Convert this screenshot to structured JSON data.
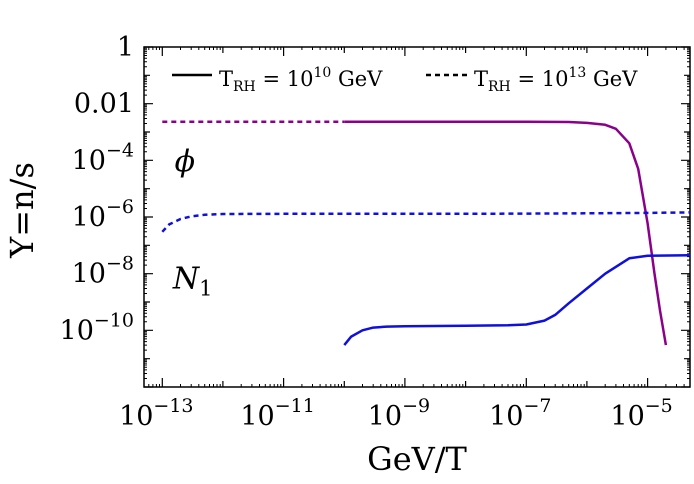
{
  "chart_data": {
    "type": "line",
    "title": "",
    "xlabel": "GeV/T",
    "ylabel": "Y=n/s",
    "xscale": "log",
    "yscale": "log",
    "xlim": [
      5e-14,
      5e-05
    ],
    "ylim": [
      1e-12,
      1
    ],
    "grid": false,
    "legend_position": "top",
    "legend": [
      {
        "style": "solid",
        "text_prefix": "T",
        "text_sub": "RH",
        "text_mid": " = 10",
        "text_sup": "10",
        "text_suffix": " GeV"
      },
      {
        "style": "dashed",
        "text_prefix": "T",
        "text_sub": "RH",
        "text_mid": " = 10",
        "text_sup": "13",
        "text_suffix": " GeV"
      }
    ],
    "x_ticks": [
      {
        "value": 1e-13,
        "base": "10",
        "exp": "−13"
      },
      {
        "value": 1e-11,
        "base": "10",
        "exp": "−11"
      },
      {
        "value": 1e-09,
        "base": "10",
        "exp": "−9"
      },
      {
        "value": 1e-07,
        "base": "10",
        "exp": "−7"
      },
      {
        "value": 1e-05,
        "base": "10",
        "exp": "−5"
      }
    ],
    "y_ticks": [
      {
        "value": 1,
        "text": "1"
      },
      {
        "value": 0.01,
        "text": "0.01"
      },
      {
        "value": 0.0001,
        "base": "10",
        "exp": "−4"
      },
      {
        "value": 1e-06,
        "base": "10",
        "exp": "−6"
      },
      {
        "value": 1e-08,
        "base": "10",
        "exp": "−8"
      },
      {
        "value": 1e-10,
        "base": "10",
        "exp": "−10"
      }
    ],
    "series_labels": [
      {
        "name": "phi",
        "text": "ϕ",
        "at": [
          1.6e-13,
          4e-05
        ],
        "color": "#8b008b"
      },
      {
        "name": "N1",
        "text": "N",
        "sub": "1",
        "at": [
          1.5e-13,
          3e-09
        ],
        "color": "#1010dd"
      }
    ],
    "series": [
      {
        "name": "phi, T_RH = 10^13 GeV",
        "color": "#8b008b",
        "style": "dashed",
        "x": [
          1e-13,
          1e-12,
          1e-11,
          1e-10
        ],
        "y": [
          0.0023,
          0.0023,
          0.0023,
          0.0023
        ]
      },
      {
        "name": "phi, T_RH = 10^10 GeV",
        "color": "#8b008b",
        "style": "solid",
        "x": [
          1e-10,
          1e-09,
          1e-08,
          1e-07,
          5e-07,
          1e-06,
          2e-06,
          3e-06,
          5e-06,
          7e-06,
          1e-05,
          1.3e-05,
          1.6e-05,
          2e-05
        ],
        "y": [
          0.0023,
          0.0023,
          0.0023,
          0.0023,
          0.00225,
          0.0021,
          0.0018,
          0.0013,
          0.0004,
          5e-05,
          6e-07,
          1e-08,
          5e-10,
          3e-11
        ]
      },
      {
        "name": "N1, T_RH = 10^13 GeV",
        "color": "#1010dd",
        "style": "dashed",
        "x": [
          1e-13,
          1.3e-13,
          2e-13,
          3e-13,
          5e-13,
          1e-12,
          1e-11,
          1e-10,
          1e-09,
          1e-08,
          1e-07,
          1e-06,
          1e-05,
          5e-05
        ],
        "y": [
          3e-07,
          5.5e-07,
          8.5e-07,
          1.05e-06,
          1.2e-06,
          1.28e-06,
          1.3e-06,
          1.3e-06,
          1.3e-06,
          1.3e-06,
          1.32e-06,
          1.35e-06,
          1.4e-06,
          1.45e-06
        ]
      },
      {
        "name": "N1, T_RH = 10^10 GeV",
        "color": "#1010dd",
        "style": "solid",
        "x": [
          1e-10,
          1.3e-10,
          2e-10,
          3e-10,
          5e-10,
          1e-09,
          1e-08,
          5e-08,
          1e-07,
          2e-07,
          3e-07,
          5e-07,
          1e-06,
          2e-06,
          5e-06,
          1e-05,
          5e-05
        ],
        "y": [
          3e-11,
          6e-11,
          1e-10,
          1.25e-10,
          1.35e-10,
          1.4e-10,
          1.45e-10,
          1.5e-10,
          1.6e-10,
          2.2e-10,
          3.5e-10,
          9e-10,
          3e-09,
          1e-08,
          3.5e-08,
          4.3e-08,
          4.5e-08
        ]
      }
    ]
  }
}
